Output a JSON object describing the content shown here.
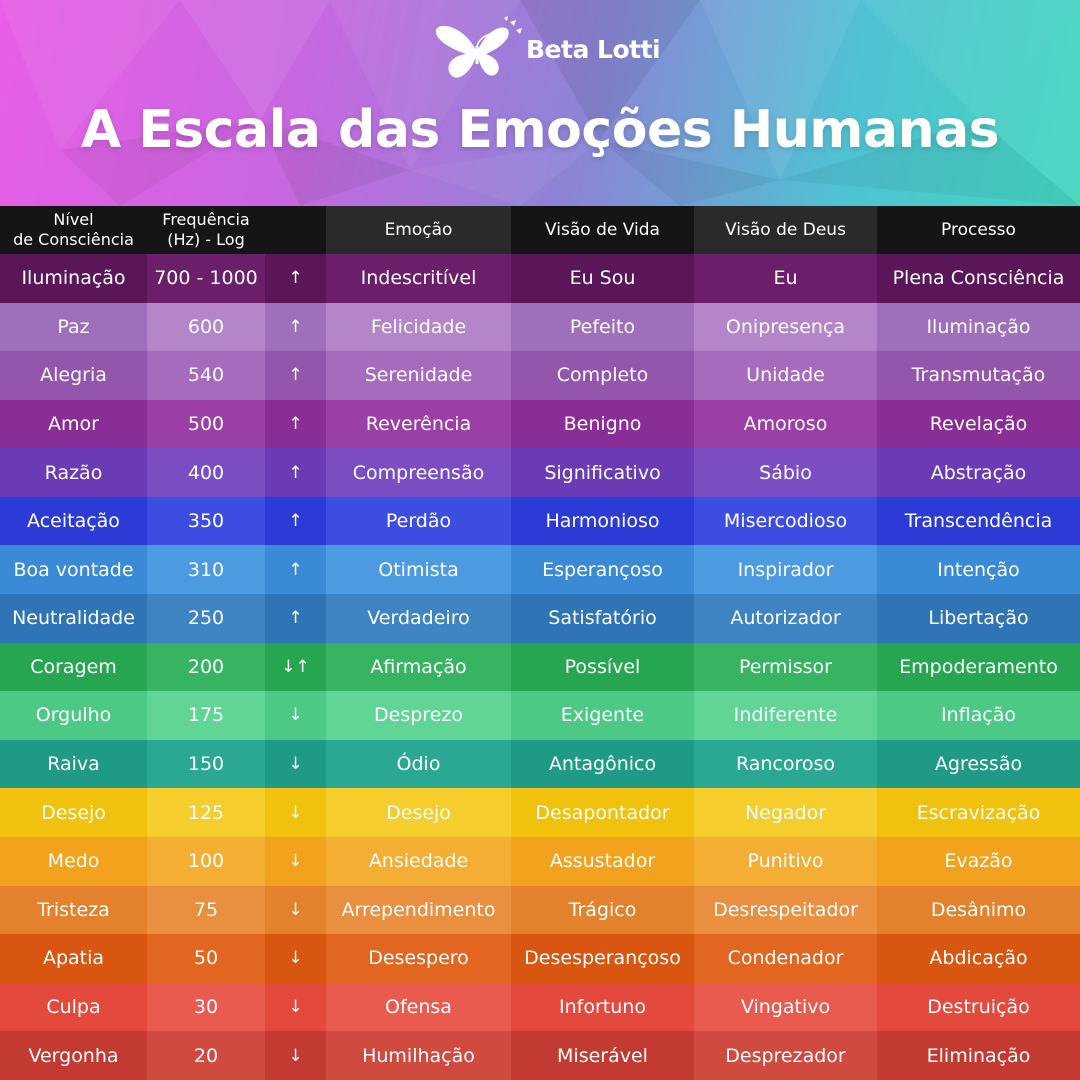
{
  "brand": {
    "name": "Beta Lotti",
    "logo_icon": "butterfly-icon"
  },
  "title": "A Escala das Emoções Humanas",
  "colors": {
    "header_bg": "#151515"
  },
  "table": {
    "headers": {
      "level_line1": "Nível",
      "level_line2": "de Consciência",
      "freq_line1": "Frequência",
      "freq_line2": "(Hz) - Log",
      "arrow": "",
      "emotion": "Emoção",
      "life_view": "Visão de Vida",
      "god_view": "Visão de Deus",
      "process": "Processo"
    },
    "rows": [
      {
        "level": "Iluminação",
        "freq": "700 - 1000",
        "arrow": "↑",
        "emotion": "Indescritível",
        "life": "Eu Sou",
        "god": "Eu",
        "process": "Plena Consciência",
        "bg": "#5a1658",
        "bg2": "#6b1e69"
      },
      {
        "level": "Paz",
        "freq": "600",
        "arrow": "↑",
        "emotion": "Felicidade",
        "life": "Pefeito",
        "god": "Onipresença",
        "process": "Iluminação",
        "bg": "#9e6fba",
        "bg2": "#b486c9"
      },
      {
        "level": "Alegria",
        "freq": "540",
        "arrow": "↑",
        "emotion": "Serenidade",
        "life": "Completo",
        "god": "Unidade",
        "process": "Transmutação",
        "bg": "#9456ad",
        "bg2": "#a76bbd"
      },
      {
        "level": "Amor",
        "freq": "500",
        "arrow": "↑",
        "emotion": "Reverência",
        "life": "Benigno",
        "god": "Amoroso",
        "process": "Revelação",
        "bg": "#8a2d96",
        "bg2": "#9b3ea6"
      },
      {
        "level": "Razão",
        "freq": "400",
        "arrow": "↑",
        "emotion": "Compreensão",
        "life": "Significativo",
        "god": "Sábio",
        "process": "Abstração",
        "bg": "#6a3bb4",
        "bg2": "#7a4dc2"
      },
      {
        "level": "Aceitação",
        "freq": "350",
        "arrow": "↑",
        "emotion": "Perdão",
        "life": "Harmonioso",
        "god": "Misercodioso",
        "process": "Transcendência",
        "bg": "#2d3bd6",
        "bg2": "#3d4de2"
      },
      {
        "level": "Boa vontade",
        "freq": "310",
        "arrow": "↑",
        "emotion": "Otimista",
        "life": "Esperançoso",
        "god": "Inspirador",
        "process": "Intenção",
        "bg": "#3a8ad6",
        "bg2": "#4c9ae0"
      },
      {
        "level": "Neutralidade",
        "freq": "250",
        "arrow": "↑",
        "emotion": "Verdadeiro",
        "life": "Satisfatório",
        "god": "Autorizador",
        "process": "Libertação",
        "bg": "#2f74b4",
        "bg2": "#3e84c2"
      },
      {
        "level": "Coragem",
        "freq": "200",
        "arrow": "↓↑",
        "emotion": "Afirmação",
        "life": "Possível",
        "god": "Permissor",
        "process": "Empoderamento",
        "bg": "#27a652",
        "bg2": "#36b462"
      },
      {
        "level": "Orgulho",
        "freq": "175",
        "arrow": "↓",
        "emotion": "Desprezo",
        "life": "Exigente",
        "god": "Indiferente",
        "process": "Inflação",
        "bg": "#4cc985",
        "bg2": "#60d596"
      },
      {
        "level": "Raiva",
        "freq": "150",
        "arrow": "↓",
        "emotion": "Ódio",
        "life": "Antagônico",
        "god": "Rancoroso",
        "process": "Agressão",
        "bg": "#1e9a86",
        "bg2": "#2aa893"
      },
      {
        "level": "Desejo",
        "freq": "125",
        "arrow": "↓",
        "emotion": "Desejo",
        "life": "Desapontador",
        "god": "Negador",
        "process": "Escravização",
        "bg": "#f0c20e",
        "bg2": "#f5cd2c"
      },
      {
        "level": "Medo",
        "freq": "100",
        "arrow": "↓",
        "emotion": "Ansiedade",
        "life": "Assustador",
        "god": "Punitivo",
        "process": "Evazão",
        "bg": "#f2a21c",
        "bg2": "#f5ae34"
      },
      {
        "level": "Tristeza",
        "freq": "75",
        "arrow": "↓",
        "emotion": "Arrependimento",
        "life": "Trágico",
        "god": "Desrespeitador",
        "process": "Desânimo",
        "bg": "#e3812d",
        "bg2": "#ea8f40"
      },
      {
        "level": "Apatia",
        "freq": "50",
        "arrow": "↓",
        "emotion": "Desespero",
        "life": "Desesperançoso",
        "god": "Condenador",
        "process": "Abdicação",
        "bg": "#d8560f",
        "bg2": "#e26620"
      },
      {
        "level": "Culpa",
        "freq": "30",
        "arrow": "↓",
        "emotion": "Ofensa",
        "life": "Infortuno",
        "god": "Vingativo",
        "process": "Destruição",
        "bg": "#e34a3d",
        "bg2": "#ea5b4f"
      },
      {
        "level": "Vergonha",
        "freq": "20",
        "arrow": "↓",
        "emotion": "Humilhação",
        "life": "Miserável",
        "god": "Desprezador",
        "process": "Eliminação",
        "bg": "#c23a31",
        "bg2": "#d04a40"
      }
    ]
  }
}
